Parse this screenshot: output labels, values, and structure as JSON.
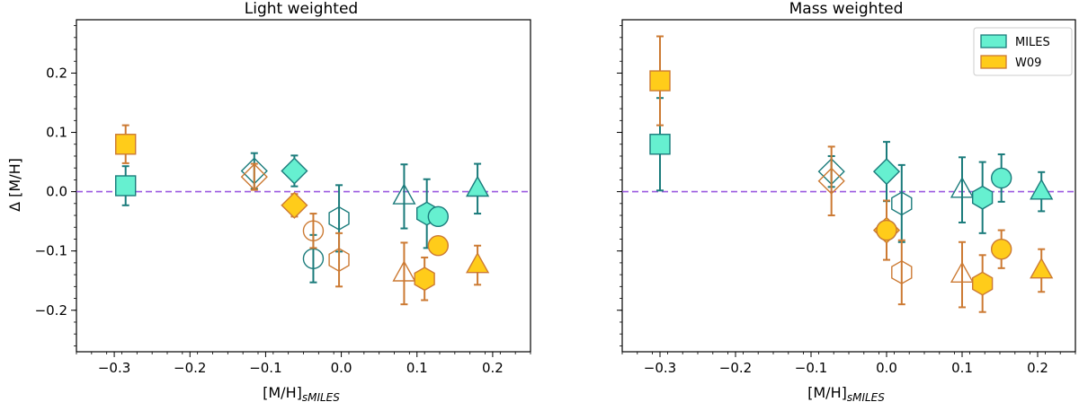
{
  "colors": {
    "miles_edge": "#1a7b7b",
    "miles_fill": "#66f0d0",
    "w09_edge": "#cc7a33",
    "w09_fill": "#ffcc1a",
    "zero_line": "#9b59e0"
  },
  "legend": {
    "location": "top-right",
    "entries": [
      {
        "label": "MILES",
        "series": "MILES"
      },
      {
        "label": "W09",
        "series": "W09"
      }
    ]
  },
  "chart_data": [
    {
      "type": "scatter",
      "title": "Light weighted",
      "xlabel_main": "[M/H]",
      "xlabel_sub": "sMILES",
      "ylabel": "Δ [M/H]",
      "xlim": [
        -0.35,
        0.25
      ],
      "ylim": [
        -0.27,
        0.29
      ],
      "xticks": [
        -0.3,
        -0.2,
        -0.1,
        0.0,
        0.1,
        0.2
      ],
      "xtick_labels": [
        "−0.3",
        "−0.2",
        "−0.1",
        "0.0",
        "0.1",
        "0.2"
      ],
      "yticks": [
        -0.2,
        -0.1,
        0.0,
        0.1,
        0.2
      ],
      "ytick_labels": [
        "−0.2",
        "−0.1",
        "0.0",
        "0.1",
        "0.2"
      ],
      "reference_line_y": 0.0,
      "series": [
        {
          "name": "MILES",
          "points": [
            {
              "x": -0.285,
              "y": 0.01,
              "err": 0.033,
              "marker": "square",
              "filled": true
            },
            {
              "x": -0.115,
              "y": 0.035,
              "err": 0.03,
              "marker": "diamond",
              "filled": false
            },
            {
              "x": -0.062,
              "y": 0.035,
              "err": 0.026,
              "marker": "diamond",
              "filled": true
            },
            {
              "x": -0.037,
              "y": -0.113,
              "err": 0.04,
              "marker": "circle",
              "filled": false
            },
            {
              "x": -0.003,
              "y": -0.045,
              "err": 0.056,
              "marker": "hexagon",
              "filled": false
            },
            {
              "x": 0.083,
              "y": -0.008,
              "err": 0.054,
              "marker": "triangle",
              "filled": false
            },
            {
              "x": 0.113,
              "y": -0.037,
              "err": 0.058,
              "marker": "hexagon",
              "filled": true
            },
            {
              "x": 0.128,
              "y": -0.042,
              "err": 0.0,
              "marker": "circle",
              "filled": true
            },
            {
              "x": 0.18,
              "y": 0.005,
              "err": 0.042,
              "marker": "triangle",
              "filled": true
            }
          ]
        },
        {
          "name": "W09",
          "points": [
            {
              "x": -0.285,
              "y": 0.08,
              "err": 0.032,
              "marker": "square",
              "filled": true
            },
            {
              "x": -0.115,
              "y": 0.025,
              "err": 0.022,
              "marker": "diamond",
              "filled": false
            },
            {
              "x": -0.062,
              "y": -0.023,
              "err": 0.019,
              "marker": "diamond",
              "filled": true
            },
            {
              "x": -0.037,
              "y": -0.066,
              "err": 0.029,
              "marker": "circle",
              "filled": false
            },
            {
              "x": -0.003,
              "y": -0.115,
              "err": 0.045,
              "marker": "hexagon",
              "filled": false
            },
            {
              "x": 0.083,
              "y": -0.138,
              "err": 0.052,
              "marker": "triangle",
              "filled": false
            },
            {
              "x": 0.11,
              "y": -0.147,
              "err": 0.036,
              "marker": "hexagon",
              "filled": true
            },
            {
              "x": 0.128,
              "y": -0.091,
              "err": 0.0,
              "marker": "circle",
              "filled": true
            },
            {
              "x": 0.18,
              "y": -0.124,
              "err": 0.033,
              "marker": "triangle",
              "filled": true
            }
          ]
        }
      ]
    },
    {
      "type": "scatter",
      "title": "Mass weighted",
      "xlabel_main": "[M/H]",
      "xlabel_sub": "sMILES",
      "ylabel": "",
      "xlim": [
        -0.35,
        0.25
      ],
      "ylim": [
        -0.27,
        0.29
      ],
      "xticks": [
        -0.3,
        -0.2,
        -0.1,
        0.0,
        0.1,
        0.2
      ],
      "xtick_labels": [
        "−0.3",
        "−0.2",
        "−0.1",
        "0.0",
        "0.1",
        "0.2"
      ],
      "yticks": [
        -0.2,
        -0.1,
        0.0,
        0.1,
        0.2
      ],
      "ytick_labels": [],
      "reference_line_y": 0.0,
      "series": [
        {
          "name": "MILES",
          "points": [
            {
              "x": -0.3,
              "y": 0.08,
              "err": 0.078,
              "marker": "square",
              "filled": true
            },
            {
              "x": -0.073,
              "y": 0.034,
              "err": 0.026,
              "marker": "diamond",
              "filled": false
            },
            {
              "x": 0.0,
              "y": 0.034,
              "err": 0.05,
              "marker": "diamond",
              "filled": true
            },
            {
              "x": 0.0,
              "y": -0.065,
              "err": 0.0,
              "marker": "circle",
              "filled": true
            },
            {
              "x": 0.02,
              "y": -0.02,
              "err": 0.065,
              "marker": "hexagon",
              "filled": false
            },
            {
              "x": 0.1,
              "y": 0.003,
              "err": 0.055,
              "marker": "triangle",
              "filled": false
            },
            {
              "x": 0.127,
              "y": -0.01,
              "err": 0.06,
              "marker": "hexagon",
              "filled": true
            },
            {
              "x": 0.152,
              "y": 0.023,
              "err": 0.04,
              "marker": "circle",
              "filled": true
            },
            {
              "x": 0.205,
              "y": 0.0,
              "err": 0.033,
              "marker": "triangle",
              "filled": true
            }
          ]
        },
        {
          "name": "W09",
          "points": [
            {
              "x": -0.3,
              "y": 0.187,
              "err": 0.075,
              "marker": "square",
              "filled": true
            },
            {
              "x": -0.073,
              "y": 0.018,
              "err": 0.058,
              "marker": "diamond",
              "filled": false
            },
            {
              "x": 0.0,
              "y": -0.065,
              "err": 0.05,
              "marker": "diamond",
              "filled": true
            },
            {
              "x": 0.0,
              "y": -0.065,
              "err": 0.0,
              "marker": "circle",
              "filled": true
            },
            {
              "x": 0.02,
              "y": -0.136,
              "err": 0.054,
              "marker": "hexagon",
              "filled": false
            },
            {
              "x": 0.1,
              "y": -0.14,
              "err": 0.055,
              "marker": "triangle",
              "filled": false
            },
            {
              "x": 0.127,
              "y": -0.155,
              "err": 0.048,
              "marker": "hexagon",
              "filled": true
            },
            {
              "x": 0.152,
              "y": -0.097,
              "err": 0.032,
              "marker": "circle",
              "filled": true
            },
            {
              "x": 0.205,
              "y": -0.133,
              "err": 0.036,
              "marker": "triangle",
              "filled": true
            }
          ]
        }
      ]
    }
  ]
}
